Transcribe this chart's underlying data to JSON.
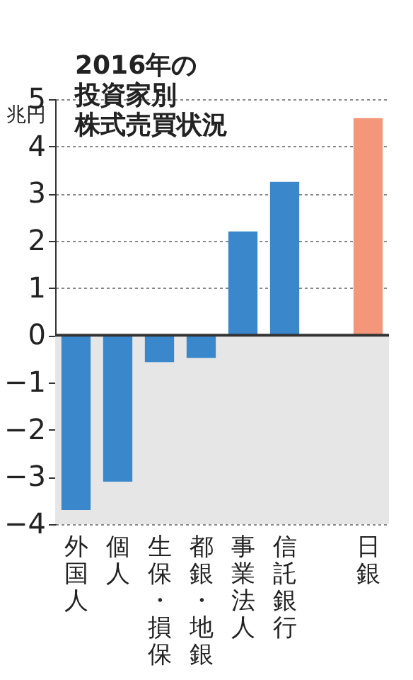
{
  "chart_data": {
    "type": "bar",
    "title": [
      "2016年の",
      "投資家別",
      "株式売買状況"
    ],
    "ylabel": "兆円",
    "categories": [
      "外国人",
      "個人",
      "生保・損保",
      "都銀・地銀",
      "事業法人",
      "信託銀行",
      null,
      "日銀"
    ],
    "values": [
      -3.7,
      -3.1,
      -0.57,
      -0.48,
      2.2,
      3.25,
      null,
      4.6
    ],
    "colors": [
      "#3a87cb",
      "#3a87cb",
      "#3a87cb",
      "#3a87cb",
      "#3a87cb",
      "#3a87cb",
      "#3a87cb",
      "#f4967a"
    ],
    "ylim": [
      -4,
      5
    ],
    "yticks": [
      -4,
      -3,
      -2,
      -1,
      0,
      1,
      2,
      3,
      4,
      5
    ],
    "grid": "y",
    "bands": [
      {
        "axis": "y",
        "from": 0,
        "to": -4,
        "color": "#e6e6e6"
      }
    ],
    "ref_lines": [
      {
        "axis": "y",
        "value": 0,
        "color": "#333333"
      }
    ]
  }
}
